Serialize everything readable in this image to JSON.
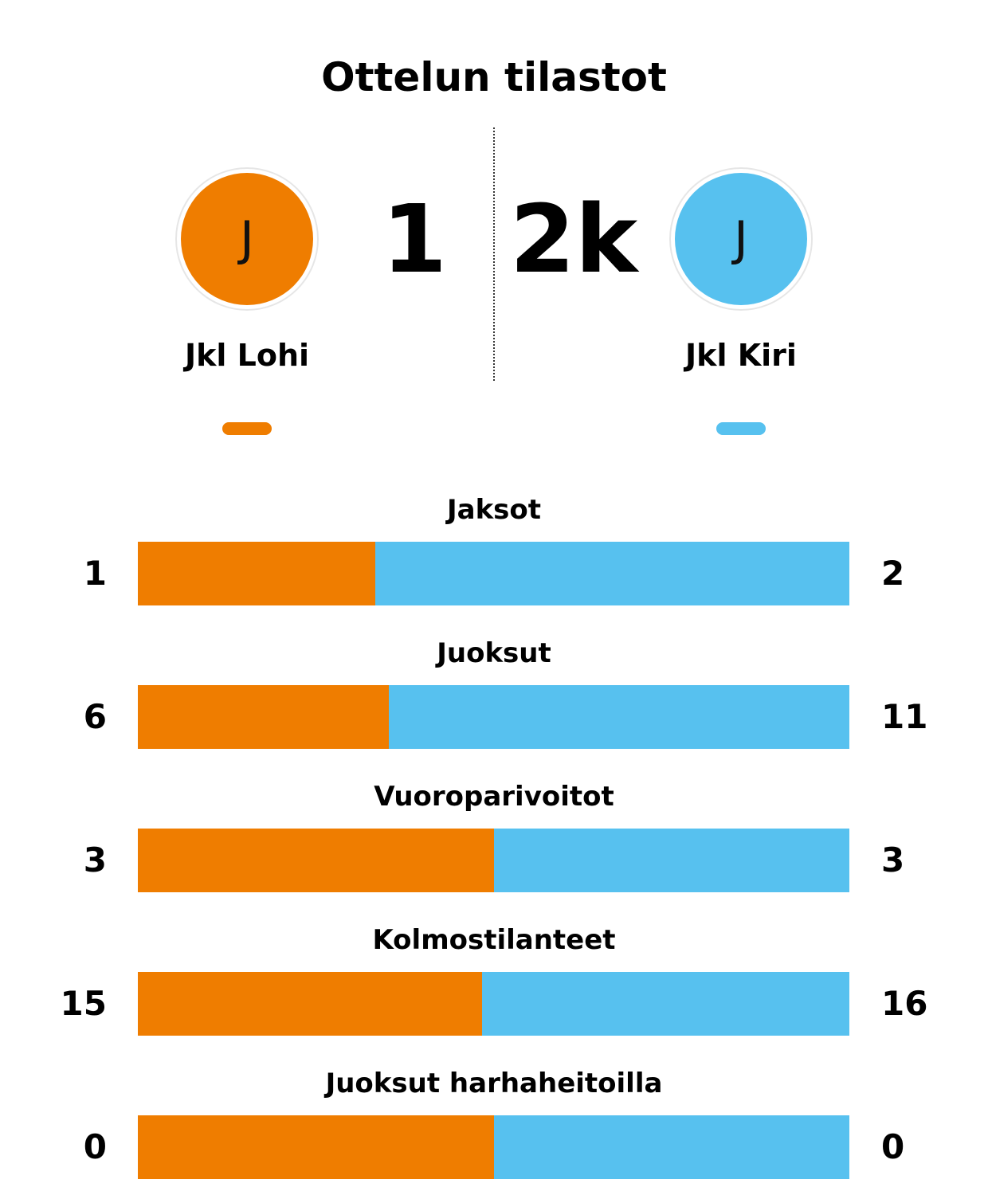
{
  "title": "Ottelun tilastot",
  "colors": {
    "home": "#EF7D00",
    "away": "#57C1EF"
  },
  "home": {
    "name": "Jkl Lohi",
    "logo_letter": "J",
    "score": "1"
  },
  "away": {
    "name": "Jkl Kiri",
    "logo_letter": "J",
    "score": "2k"
  },
  "chart_data": {
    "type": "bar",
    "orientation": "horizontal-stacked-share",
    "categories": [
      "Jaksot",
      "Juoksut",
      "Vuoroparivoitot",
      "Kolmostilanteet",
      "Juoksut harhaheitoilla"
    ],
    "series": [
      {
        "name": "Jkl Lohi",
        "values": [
          1,
          6,
          3,
          15,
          0
        ]
      },
      {
        "name": "Jkl Kiri",
        "values": [
          2,
          11,
          3,
          16,
          0
        ]
      }
    ]
  }
}
